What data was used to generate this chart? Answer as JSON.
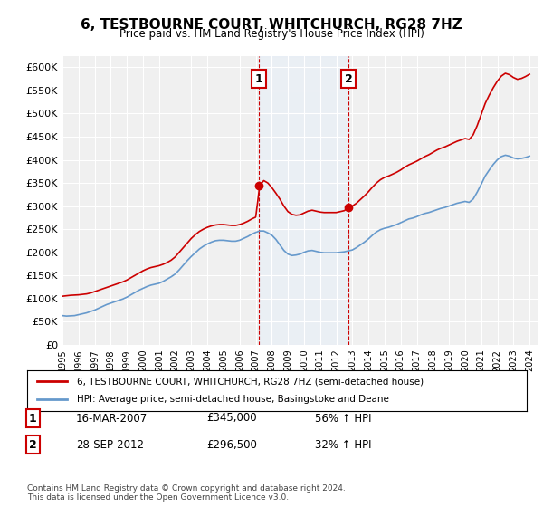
{
  "title": "6, TESTBOURNE COURT, WHITCHURCH, RG28 7HZ",
  "subtitle": "Price paid vs. HM Land Registry's House Price Index (HPI)",
  "ylabel": "",
  "ylim": [
    0,
    625000
  ],
  "yticks": [
    0,
    50000,
    100000,
    150000,
    200000,
    250000,
    300000,
    350000,
    400000,
    450000,
    500000,
    550000,
    600000
  ],
  "ytick_labels": [
    "£0",
    "£50K",
    "£100K",
    "£150K",
    "£200K",
    "£250K",
    "£300K",
    "£350K",
    "£400K",
    "£450K",
    "£500K",
    "£550K",
    "£600K"
  ],
  "property_color": "#cc0000",
  "hpi_color": "#6699cc",
  "transaction1_x": 2007.21,
  "transaction1_y": 345000,
  "transaction1_label": "1",
  "transaction2_x": 2012.75,
  "transaction2_y": 296500,
  "transaction2_label": "2",
  "vline_color": "#cc0000",
  "shading_color": "#ddeeff",
  "legend_line1": "6, TESTBOURNE COURT, WHITCHURCH, RG28 7HZ (semi-detached house)",
  "legend_line2": "HPI: Average price, semi-detached house, Basingstoke and Deane",
  "table_row1": [
    "1",
    "16-MAR-2007",
    "£345,000",
    "56% ↑ HPI"
  ],
  "table_row2": [
    "2",
    "28-SEP-2012",
    "£296,500",
    "32% ↑ HPI"
  ],
  "footer": "Contains HM Land Registry data © Crown copyright and database right 2024.\nThis data is licensed under the Open Government Licence v3.0.",
  "hpi_data_x": [
    1995.0,
    1995.25,
    1995.5,
    1995.75,
    1996.0,
    1996.25,
    1996.5,
    1996.75,
    1997.0,
    1997.25,
    1997.5,
    1997.75,
    1998.0,
    1998.25,
    1998.5,
    1998.75,
    1999.0,
    1999.25,
    1999.5,
    1999.75,
    2000.0,
    2000.25,
    2000.5,
    2000.75,
    2001.0,
    2001.25,
    2001.5,
    2001.75,
    2002.0,
    2002.25,
    2002.5,
    2002.75,
    2003.0,
    2003.25,
    2003.5,
    2003.75,
    2004.0,
    2004.25,
    2004.5,
    2004.75,
    2005.0,
    2005.25,
    2005.5,
    2005.75,
    2006.0,
    2006.25,
    2006.5,
    2006.75,
    2007.0,
    2007.25,
    2007.5,
    2007.75,
    2008.0,
    2008.25,
    2008.5,
    2008.75,
    2009.0,
    2009.25,
    2009.5,
    2009.75,
    2010.0,
    2010.25,
    2010.5,
    2010.75,
    2011.0,
    2011.25,
    2011.5,
    2011.75,
    2012.0,
    2012.25,
    2012.5,
    2012.75,
    2013.0,
    2013.25,
    2013.5,
    2013.75,
    2014.0,
    2014.25,
    2014.5,
    2014.75,
    2015.0,
    2015.25,
    2015.5,
    2015.75,
    2016.0,
    2016.25,
    2016.5,
    2016.75,
    2017.0,
    2017.25,
    2017.5,
    2017.75,
    2018.0,
    2018.25,
    2018.5,
    2018.75,
    2019.0,
    2019.25,
    2019.5,
    2019.75,
    2020.0,
    2020.25,
    2020.5,
    2020.75,
    2021.0,
    2021.25,
    2021.5,
    2021.75,
    2022.0,
    2022.25,
    2022.5,
    2022.75,
    2023.0,
    2023.25,
    2023.5,
    2023.75,
    2024.0
  ],
  "hpi_data_y": [
    63000,
    62000,
    62500,
    63000,
    65000,
    67000,
    69000,
    72000,
    75000,
    79000,
    83000,
    87000,
    90000,
    93000,
    96000,
    99000,
    103000,
    108000,
    113000,
    118000,
    122000,
    126000,
    129000,
    131000,
    133000,
    137000,
    142000,
    147000,
    153000,
    162000,
    172000,
    182000,
    191000,
    199000,
    207000,
    213000,
    218000,
    222000,
    225000,
    226000,
    226000,
    225000,
    224000,
    224000,
    226000,
    230000,
    234000,
    239000,
    243000,
    246000,
    246000,
    242000,
    237000,
    228000,
    216000,
    204000,
    196000,
    193000,
    194000,
    196000,
    200000,
    203000,
    204000,
    202000,
    200000,
    199000,
    199000,
    199000,
    199000,
    200000,
    201000,
    203000,
    205000,
    210000,
    216000,
    222000,
    229000,
    237000,
    244000,
    249000,
    252000,
    254000,
    257000,
    260000,
    264000,
    268000,
    272000,
    274000,
    277000,
    281000,
    284000,
    286000,
    289000,
    292000,
    295000,
    297000,
    300000,
    303000,
    306000,
    308000,
    310000,
    308000,
    315000,
    330000,
    347000,
    365000,
    378000,
    390000,
    400000,
    407000,
    410000,
    408000,
    404000,
    402000,
    403000,
    405000,
    408000
  ],
  "property_data_x": [
    1995.0,
    1995.25,
    1995.5,
    1995.75,
    1996.0,
    1996.25,
    1996.5,
    1996.75,
    1997.0,
    1997.25,
    1997.5,
    1997.75,
    1998.0,
    1998.25,
    1998.5,
    1998.75,
    1999.0,
    1999.25,
    1999.5,
    1999.75,
    2000.0,
    2000.25,
    2000.5,
    2000.75,
    2001.0,
    2001.25,
    2001.5,
    2001.75,
    2002.0,
    2002.25,
    2002.5,
    2002.75,
    2003.0,
    2003.25,
    2003.5,
    2003.75,
    2004.0,
    2004.25,
    2004.5,
    2004.75,
    2005.0,
    2005.25,
    2005.5,
    2005.75,
    2006.0,
    2006.25,
    2006.5,
    2006.75,
    2007.0,
    2007.25,
    2007.5,
    2007.75,
    2008.0,
    2008.25,
    2008.5,
    2008.75,
    2009.0,
    2009.25,
    2009.5,
    2009.75,
    2010.0,
    2010.25,
    2010.5,
    2010.75,
    2011.0,
    2011.25,
    2011.5,
    2011.75,
    2012.0,
    2012.25,
    2012.5,
    2012.75,
    2013.0,
    2013.25,
    2013.5,
    2013.75,
    2014.0,
    2014.25,
    2014.5,
    2014.75,
    2015.0,
    2015.25,
    2015.5,
    2015.75,
    2016.0,
    2016.25,
    2016.5,
    2016.75,
    2017.0,
    2017.25,
    2017.5,
    2017.75,
    2018.0,
    2018.25,
    2018.5,
    2018.75,
    2019.0,
    2019.25,
    2019.5,
    2019.75,
    2020.0,
    2020.25,
    2020.5,
    2020.75,
    2021.0,
    2021.25,
    2021.5,
    2021.75,
    2022.0,
    2022.25,
    2022.5,
    2022.75,
    2023.0,
    2023.25,
    2023.5,
    2023.75,
    2024.0
  ],
  "property_data_y": [
    105000,
    106000,
    107000,
    107500,
    108000,
    109000,
    110000,
    112000,
    115000,
    118000,
    121000,
    124000,
    127000,
    130000,
    133000,
    136000,
    140000,
    145000,
    150000,
    155000,
    160000,
    164000,
    167000,
    169000,
    171000,
    174000,
    178000,
    183000,
    190000,
    200000,
    210000,
    220000,
    230000,
    238000,
    245000,
    250000,
    254000,
    257000,
    259000,
    260000,
    260000,
    259000,
    258000,
    258000,
    260000,
    263000,
    267000,
    272000,
    276000,
    345000,
    355000,
    350000,
    340000,
    328000,
    315000,
    300000,
    288000,
    282000,
    280000,
    281000,
    285000,
    289000,
    291000,
    289000,
    287000,
    286000,
    286000,
    286000,
    286000,
    288000,
    290000,
    296500,
    300000,
    306000,
    314000,
    322000,
    331000,
    341000,
    350000,
    357000,
    362000,
    365000,
    369000,
    373000,
    378000,
    384000,
    389000,
    393000,
    397000,
    402000,
    407000,
    411000,
    416000,
    421000,
    425000,
    428000,
    432000,
    436000,
    440000,
    443000,
    446000,
    444000,
    454000,
    474000,
    498000,
    522000,
    540000,
    556000,
    570000,
    581000,
    587000,
    584000,
    578000,
    574000,
    576000,
    580000,
    585000
  ],
  "xlim": [
    1995.0,
    2024.5
  ],
  "xticks": [
    1995,
    1996,
    1997,
    1998,
    1999,
    2000,
    2001,
    2002,
    2003,
    2004,
    2005,
    2006,
    2007,
    2008,
    2009,
    2010,
    2011,
    2012,
    2013,
    2014,
    2015,
    2016,
    2017,
    2018,
    2019,
    2020,
    2021,
    2022,
    2023,
    2024
  ],
  "background_color": "#ffffff",
  "plot_bg_color": "#f0f0f0"
}
